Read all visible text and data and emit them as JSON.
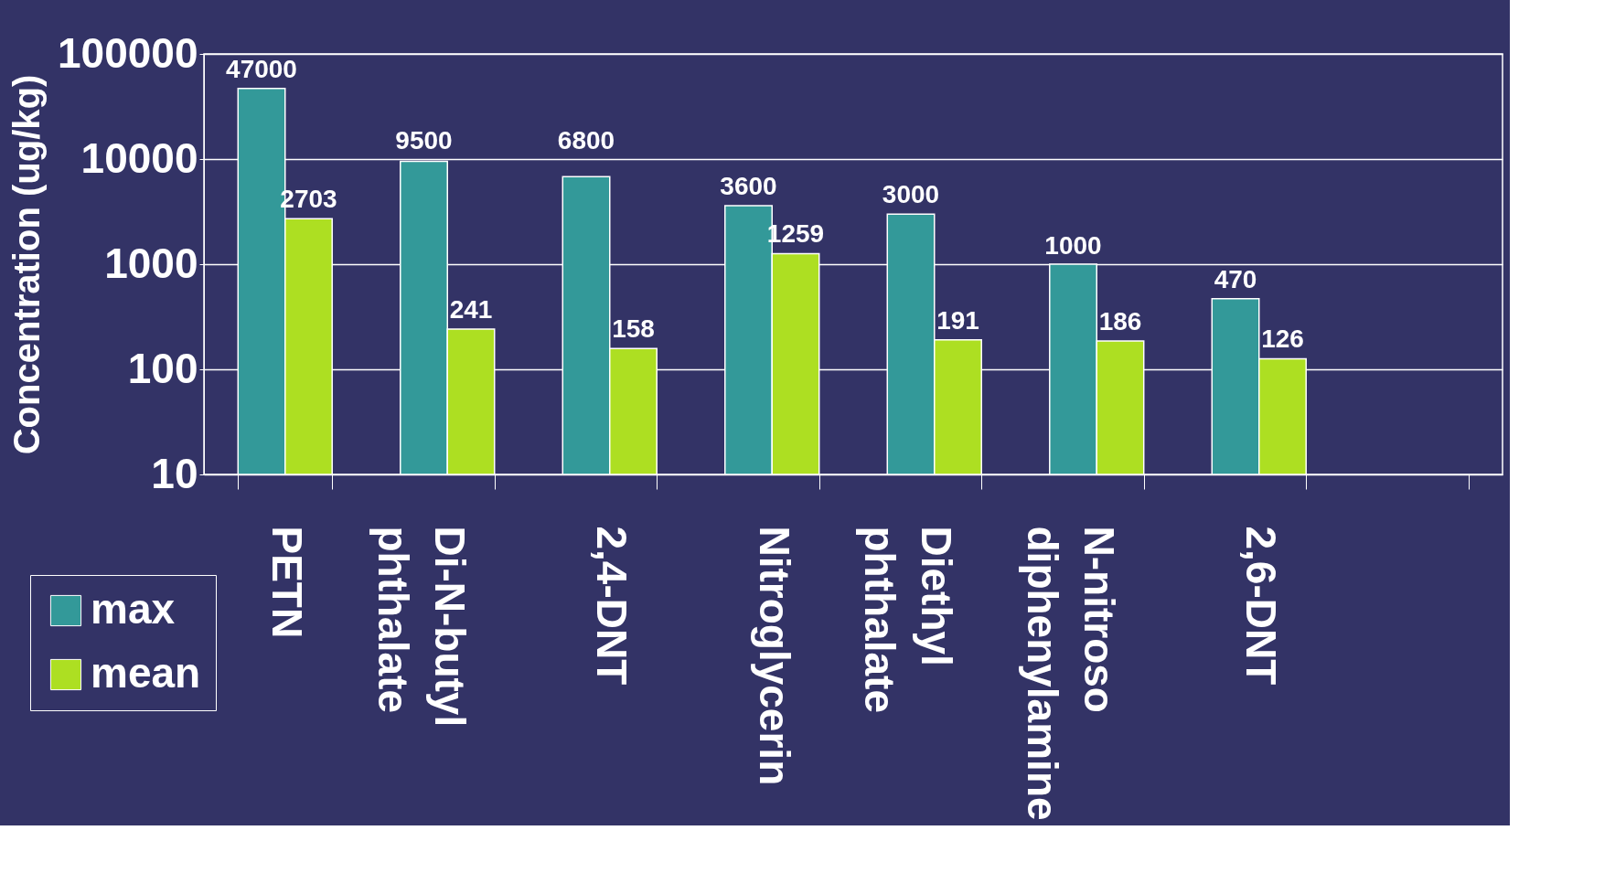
{
  "chart_data": {
    "type": "bar",
    "ylabel": "Concentration (ug/kg)",
    "categories": [
      "PETN",
      "Di-N-butyl phthalate",
      "2,4-DNT",
      "Nitroglycerin",
      "Diethyl phthalate",
      "N-nitroso diphenylamine",
      "2,6-DNT",
      null
    ],
    "series": [
      {
        "name": "max",
        "color": "#339999",
        "values": [
          47000,
          9500,
          6800,
          3600,
          3000,
          1000,
          470,
          null
        ]
      },
      {
        "name": "mean",
        "color": "#addf22",
        "values": [
          2703,
          241,
          158,
          1259,
          191,
          186,
          126,
          null
        ]
      }
    ],
    "log": true,
    "ylim": [
      10,
      100000
    ],
    "yticks": [
      10,
      100,
      1000,
      10000,
      100000
    ],
    "grid": "y",
    "legend": "bottom left",
    "data_labels": true
  }
}
